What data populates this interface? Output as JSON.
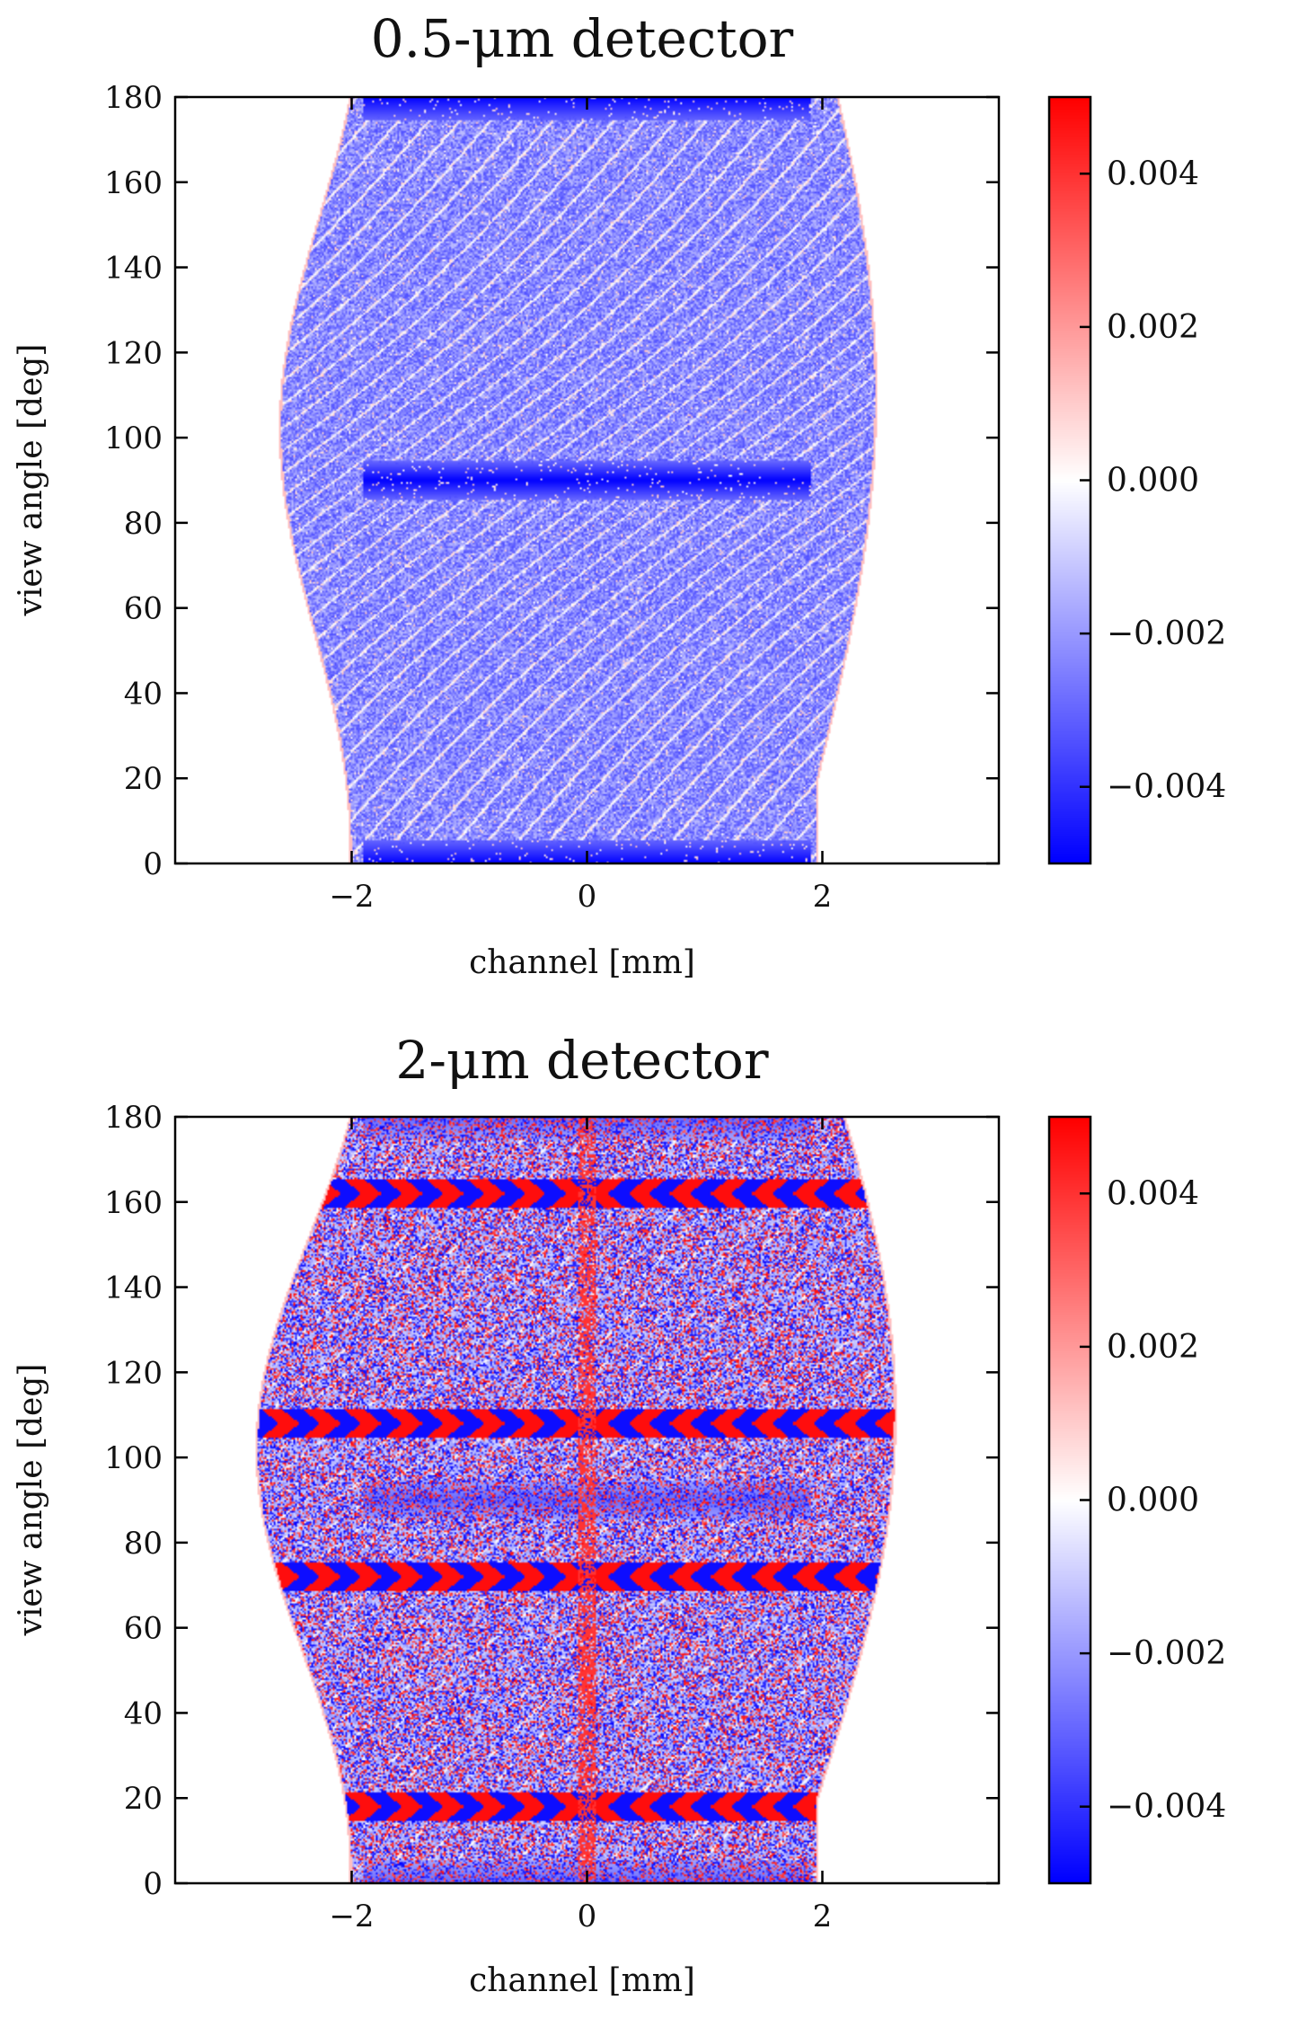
{
  "chart_data": [
    {
      "type": "heatmap",
      "title": "0.5-μm detector",
      "xlabel": "channel [mm]",
      "ylabel": "view angle [deg]",
      "xlim": [
        -3.5,
        3.5
      ],
      "ylim": [
        0,
        180
      ],
      "x_ticks": [
        -2,
        0,
        2
      ],
      "x_tick_labels": [
        "−2",
        "0",
        "2"
      ],
      "y_ticks": [
        0,
        20,
        40,
        60,
        80,
        100,
        120,
        140,
        160,
        180
      ],
      "y_tick_labels": [
        "0",
        "20",
        "40",
        "60",
        "80",
        "100",
        "120",
        "140",
        "160",
        "180"
      ],
      "colorbar": {
        "colormap": "bwr",
        "vmin": -0.005,
        "vmax": 0.005,
        "ticks": [
          0.004,
          0.002,
          0.0,
          -0.002,
          -0.004
        ],
        "tick_labels": [
          "0.004",
          "0.002",
          "0.000",
          "−0.002",
          "−0.004"
        ]
      },
      "support": {
        "left_base": -2.0,
        "right_base": 1.95,
        "sine_amplitude": 0.45
      },
      "features": {
        "dense_bands_deg": [
          0,
          90,
          180
        ],
        "band_extent": [
          -1.9,
          1.9
        ],
        "fringe_rows_deg": []
      },
      "noise": "low",
      "colors": {
        "positive": "#ff0000",
        "zero": "#ffffff",
        "negative": "#0000ff"
      }
    },
    {
      "type": "heatmap",
      "title": "2-μm detector",
      "xlabel": "channel [mm]",
      "ylabel": "view angle [deg]",
      "xlim": [
        -3.5,
        3.5
      ],
      "ylim": [
        0,
        180
      ],
      "x_ticks": [
        -2,
        0,
        2
      ],
      "x_tick_labels": [
        "−2",
        "0",
        "2"
      ],
      "y_ticks": [
        0,
        20,
        40,
        60,
        80,
        100,
        120,
        140,
        160,
        180
      ],
      "y_tick_labels": [
        "0",
        "20",
        "40",
        "60",
        "80",
        "100",
        "120",
        "140",
        "160",
        "180"
      ],
      "colorbar": {
        "colormap": "bwr",
        "vmin": -0.005,
        "vmax": 0.005,
        "ticks": [
          0.004,
          0.002,
          0.0,
          -0.002,
          -0.004
        ],
        "tick_labels": [
          "0.004",
          "0.002",
          "0.000",
          "−0.002",
          "−0.004"
        ]
      },
      "support": {
        "left_base": -2.0,
        "right_base": 1.95,
        "sine_amplitude": 0.6
      },
      "features": {
        "dense_bands_deg": [
          0,
          90,
          180
        ],
        "band_extent": [
          -1.9,
          1.9
        ],
        "fringe_rows_deg": [
          18,
          72,
          108,
          162
        ]
      },
      "noise": "high",
      "colors": {
        "positive": "#ff0000",
        "zero": "#ffffff",
        "negative": "#0000ff"
      }
    }
  ]
}
